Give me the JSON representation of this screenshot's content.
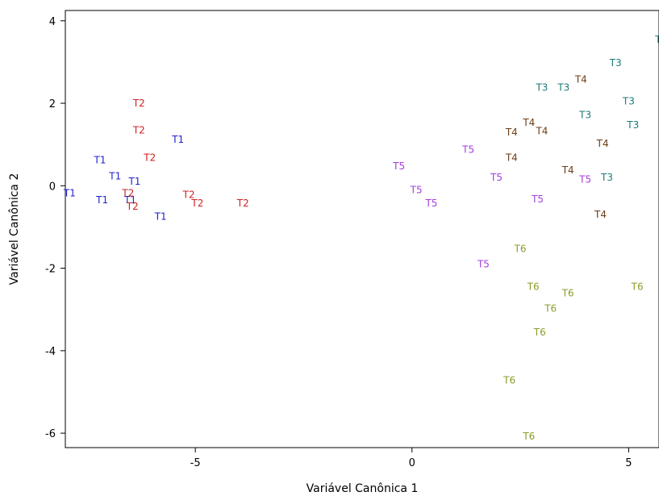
{
  "chart_data": {
    "type": "scatter",
    "xlabel": "Variável Canônica 1",
    "ylabel": "Variável Canônica 2",
    "xlim": [
      -8.0,
      5.7
    ],
    "ylim": [
      -6.35,
      4.25
    ],
    "x_ticks": [
      -5,
      0,
      5
    ],
    "y_ticks": [
      -6,
      -4,
      -2,
      0,
      2,
      4
    ],
    "grid": false,
    "series": [
      {
        "name": "T1",
        "color": "#2222cc",
        "points": [
          {
            "x": -7.9,
            "y": -0.18
          },
          {
            "x": -7.2,
            "y": 0.62
          },
          {
            "x": -7.15,
            "y": -0.35
          },
          {
            "x": -6.85,
            "y": 0.23
          },
          {
            "x": -6.5,
            "y": -0.35
          },
          {
            "x": -6.4,
            "y": 0.1
          },
          {
            "x": -5.8,
            "y": -0.75
          },
          {
            "x": -5.4,
            "y": 1.12
          }
        ]
      },
      {
        "name": "T2",
        "color": "#cc2222",
        "points": [
          {
            "x": -6.3,
            "y": 2.0
          },
          {
            "x": -6.3,
            "y": 1.35
          },
          {
            "x": -6.05,
            "y": 0.68
          },
          {
            "x": -6.55,
            "y": -0.18
          },
          {
            "x": -6.45,
            "y": -0.5
          },
          {
            "x": -5.15,
            "y": -0.22
          },
          {
            "x": -4.95,
            "y": -0.42
          },
          {
            "x": -3.9,
            "y": -0.42
          }
        ]
      },
      {
        "name": "T3",
        "color": "#1e7a78",
        "points": [
          {
            "x": 5.75,
            "y": 3.55
          },
          {
            "x": 4.7,
            "y": 2.98
          },
          {
            "x": 5.0,
            "y": 2.05
          },
          {
            "x": 3.0,
            "y": 2.38
          },
          {
            "x": 3.5,
            "y": 2.38
          },
          {
            "x": 4.0,
            "y": 1.72
          },
          {
            "x": 5.1,
            "y": 1.47
          },
          {
            "x": 4.5,
            "y": 0.2
          }
        ]
      },
      {
        "name": "T4",
        "color": "#6b3c14",
        "points": [
          {
            "x": 3.9,
            "y": 2.58
          },
          {
            "x": 2.7,
            "y": 1.53
          },
          {
            "x": 2.3,
            "y": 1.3
          },
          {
            "x": 3.0,
            "y": 1.33
          },
          {
            "x": 4.4,
            "y": 1.02
          },
          {
            "x": 2.3,
            "y": 0.68
          },
          {
            "x": 3.6,
            "y": 0.38
          },
          {
            "x": 4.35,
            "y": -0.7
          }
        ]
      },
      {
        "name": "T5",
        "color": "#a640dc",
        "points": [
          {
            "x": 1.3,
            "y": 0.88
          },
          {
            "x": -0.3,
            "y": 0.48
          },
          {
            "x": 1.95,
            "y": 0.2
          },
          {
            "x": 4.0,
            "y": 0.15
          },
          {
            "x": 0.1,
            "y": -0.1
          },
          {
            "x": 0.45,
            "y": -0.42
          },
          {
            "x": 2.9,
            "y": -0.33
          },
          {
            "x": 1.65,
            "y": -1.9
          }
        ]
      },
      {
        "name": "T6",
        "color": "#8c9b2a",
        "points": [
          {
            "x": 2.5,
            "y": -1.53
          },
          {
            "x": 2.8,
            "y": -2.45
          },
          {
            "x": 3.6,
            "y": -2.6
          },
          {
            "x": 5.2,
            "y": -2.45
          },
          {
            "x": 3.2,
            "y": -2.98
          },
          {
            "x": 2.95,
            "y": -3.55
          },
          {
            "x": 2.25,
            "y": -4.72
          },
          {
            "x": 2.7,
            "y": -6.08
          }
        ]
      }
    ]
  }
}
